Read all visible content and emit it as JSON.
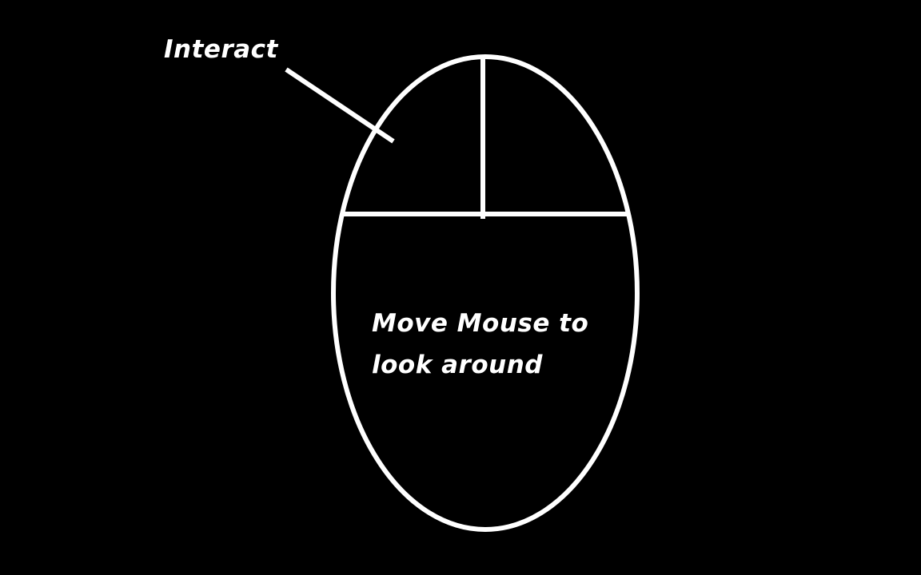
{
  "background_color": "#000000",
  "stroke_color": "#ffffff",
  "labels": {
    "interact": "Interact",
    "move_line1": "Move Mouse to",
    "move_line2": "look around"
  },
  "icons": {
    "mouse": "mouse-outline-icon"
  }
}
